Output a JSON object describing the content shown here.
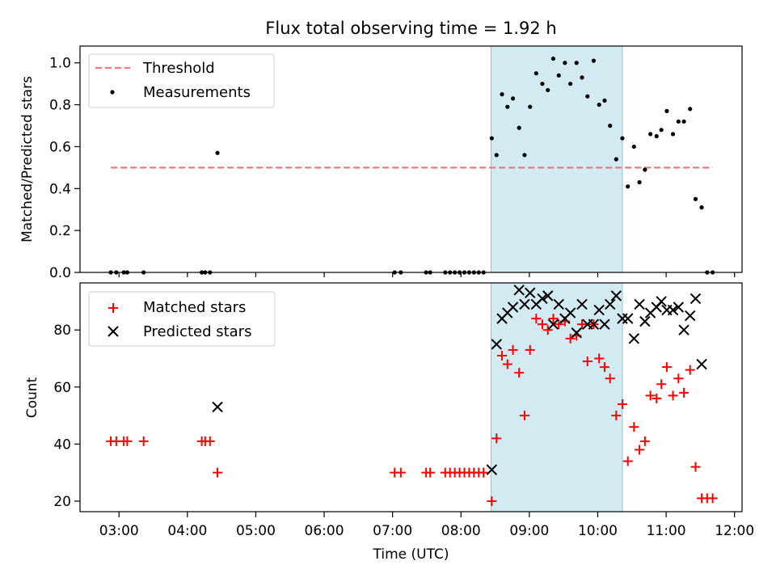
{
  "chart_data": [
    {
      "type": "scatter",
      "title": "Flux total observing time = 1.92 h",
      "ylabel": "Matched/Predicted stars",
      "ylim": [
        0,
        1.08
      ],
      "yticks": [
        "0.0",
        "0.2",
        "0.4",
        "0.6",
        "0.8",
        "1.0"
      ],
      "ytick_values": [
        0,
        0.2,
        0.4,
        0.6,
        0.8,
        1.0
      ],
      "highlight_span": {
        "start": 8.44,
        "end": 10.36,
        "color": "#add8e6"
      },
      "threshold": {
        "value": 0.5,
        "x_start": 2.88,
        "x_end": 11.68,
        "color": "#f47777"
      },
      "legend": {
        "placement": "upper left",
        "entries": [
          "Threshold",
          "Measurements"
        ]
      },
      "series": [
        {
          "name": "Measurements",
          "color": "#000000",
          "points": [
            [
              2.88,
              0
            ],
            [
              2.96,
              0
            ],
            [
              3.07,
              0
            ],
            [
              3.12,
              0
            ],
            [
              3.36,
              0
            ],
            [
              4.21,
              0
            ],
            [
              4.26,
              0
            ],
            [
              4.33,
              0
            ],
            [
              4.44,
              0.57
            ],
            [
              7.03,
              0
            ],
            [
              7.12,
              0
            ],
            [
              7.49,
              0
            ],
            [
              7.55,
              0
            ],
            [
              7.77,
              0
            ],
            [
              7.84,
              0
            ],
            [
              7.91,
              0
            ],
            [
              7.98,
              0
            ],
            [
              8.05,
              0
            ],
            [
              8.12,
              0
            ],
            [
              8.19,
              0
            ],
            [
              8.26,
              0
            ],
            [
              8.33,
              0
            ],
            [
              8.45,
              0.64
            ],
            [
              8.52,
              0.56
            ],
            [
              8.6,
              0.85
            ],
            [
              8.68,
              0.79
            ],
            [
              8.76,
              0.83
            ],
            [
              8.85,
              0.69
            ],
            [
              8.93,
              0.56
            ],
            [
              9.01,
              0.79
            ],
            [
              9.1,
              0.95
            ],
            [
              9.19,
              0.9
            ],
            [
              9.27,
              0.87
            ],
            [
              9.35,
              1.02
            ],
            [
              9.43,
              0.94
            ],
            [
              9.52,
              1.0
            ],
            [
              9.6,
              0.9
            ],
            [
              9.69,
              1.0
            ],
            [
              9.77,
              0.93
            ],
            [
              9.85,
              0.84
            ],
            [
              9.94,
              1.01
            ],
            [
              10.02,
              0.8
            ],
            [
              10.1,
              0.82
            ],
            [
              10.18,
              0.7
            ],
            [
              10.27,
              0.54
            ],
            [
              10.36,
              0.64
            ],
            [
              10.44,
              0.41
            ],
            [
              10.53,
              0.6
            ],
            [
              10.61,
              0.43
            ],
            [
              10.69,
              0.49
            ],
            [
              10.77,
              0.66
            ],
            [
              10.86,
              0.65
            ],
            [
              10.93,
              0.68
            ],
            [
              11.01,
              0.77
            ],
            [
              11.1,
              0.66
            ],
            [
              11.18,
              0.72
            ],
            [
              11.26,
              0.72
            ],
            [
              11.35,
              0.78
            ],
            [
              11.43,
              0.35
            ],
            [
              11.52,
              0.31
            ],
            [
              11.6,
              0
            ],
            [
              11.68,
              0
            ]
          ]
        }
      ]
    },
    {
      "type": "scatter",
      "xlabel": "Time (UTC)",
      "ylabel": "Count",
      "ylim": [
        16.3,
        96.5
      ],
      "yticks": [
        "20",
        "40",
        "60",
        "80"
      ],
      "ytick_values": [
        20,
        40,
        60,
        80
      ],
      "xlim": [
        2.43,
        12.11
      ],
      "xticks": [
        "03:00",
        "04:00",
        "05:00",
        "06:00",
        "07:00",
        "08:00",
        "09:00",
        "10:00",
        "11:00",
        "12:00"
      ],
      "xtick_values": [
        3,
        4,
        5,
        6,
        7,
        8,
        9,
        10,
        11,
        12
      ],
      "highlight_span": {
        "start": 8.44,
        "end": 10.36,
        "color": "#add8e6"
      },
      "legend": {
        "placement": "upper left",
        "entries": [
          "Matched stars",
          "Predicted stars"
        ]
      },
      "series": [
        {
          "name": "Matched stars",
          "marker": "plus",
          "color": "#ff0000",
          "points": [
            [
              2.88,
              41
            ],
            [
              2.96,
              41
            ],
            [
              3.07,
              41
            ],
            [
              3.12,
              41
            ],
            [
              3.36,
              41
            ],
            [
              4.21,
              41
            ],
            [
              4.26,
              41
            ],
            [
              4.33,
              41
            ],
            [
              4.44,
              30
            ],
            [
              7.03,
              30
            ],
            [
              7.12,
              30
            ],
            [
              7.49,
              30
            ],
            [
              7.55,
              30
            ],
            [
              7.77,
              30
            ],
            [
              7.84,
              30
            ],
            [
              7.91,
              30
            ],
            [
              7.98,
              30
            ],
            [
              8.05,
              30
            ],
            [
              8.12,
              30
            ],
            [
              8.19,
              30
            ],
            [
              8.26,
              30
            ],
            [
              8.33,
              30
            ],
            [
              8.45,
              20
            ],
            [
              8.52,
              42
            ],
            [
              8.6,
              71
            ],
            [
              8.68,
              68
            ],
            [
              8.76,
              73
            ],
            [
              8.85,
              65
            ],
            [
              8.93,
              50
            ],
            [
              9.01,
              73
            ],
            [
              9.1,
              84
            ],
            [
              9.19,
              82
            ],
            [
              9.27,
              80
            ],
            [
              9.35,
              84
            ],
            [
              9.43,
              82
            ],
            [
              9.52,
              83
            ],
            [
              9.6,
              77
            ],
            [
              9.69,
              78
            ],
            [
              9.77,
              82
            ],
            [
              9.85,
              69
            ],
            [
              9.94,
              82
            ],
            [
              10.02,
              70
            ],
            [
              10.1,
              67
            ],
            [
              10.18,
              63
            ],
            [
              10.27,
              50
            ],
            [
              10.36,
              54
            ],
            [
              10.44,
              34
            ],
            [
              10.53,
              46
            ],
            [
              10.61,
              38
            ],
            [
              10.69,
              41
            ],
            [
              10.77,
              57
            ],
            [
              10.86,
              56
            ],
            [
              10.93,
              61
            ],
            [
              11.01,
              67
            ],
            [
              11.1,
              57
            ],
            [
              11.18,
              63
            ],
            [
              11.26,
              58
            ],
            [
              11.35,
              66
            ],
            [
              11.43,
              32
            ],
            [
              11.52,
              21
            ],
            [
              11.6,
              21
            ],
            [
              11.68,
              21
            ]
          ]
        },
        {
          "name": "Predicted stars",
          "marker": "x",
          "color": "#000000",
          "points": [
            [
              4.44,
              53
            ],
            [
              8.45,
              31
            ],
            [
              8.52,
              75
            ],
            [
              8.6,
              84
            ],
            [
              8.68,
              86
            ],
            [
              8.76,
              88
            ],
            [
              8.85,
              94
            ],
            [
              8.93,
              89
            ],
            [
              9.01,
              93
            ],
            [
              9.1,
              89
            ],
            [
              9.19,
              91
            ],
            [
              9.27,
              92
            ],
            [
              9.35,
              82
            ],
            [
              9.43,
              89
            ],
            [
              9.52,
              84
            ],
            [
              9.6,
              86
            ],
            [
              9.69,
              79
            ],
            [
              9.77,
              89
            ],
            [
              9.85,
              82
            ],
            [
              9.94,
              82
            ],
            [
              10.02,
              87
            ],
            [
              10.1,
              82
            ],
            [
              10.18,
              89
            ],
            [
              10.27,
              92
            ],
            [
              10.36,
              84
            ],
            [
              10.44,
              84
            ],
            [
              10.53,
              77
            ],
            [
              10.61,
              89
            ],
            [
              10.69,
              83
            ],
            [
              10.77,
              86
            ],
            [
              10.86,
              88
            ],
            [
              10.93,
              90
            ],
            [
              11.01,
              87
            ],
            [
              11.1,
              87
            ],
            [
              11.18,
              88
            ],
            [
              11.26,
              80
            ],
            [
              11.35,
              85
            ],
            [
              11.43,
              91
            ],
            [
              11.52,
              68
            ]
          ]
        }
      ]
    }
  ]
}
